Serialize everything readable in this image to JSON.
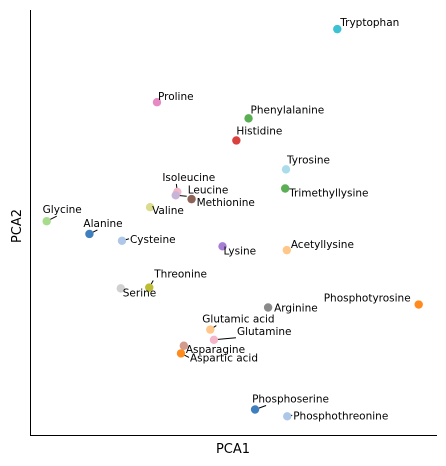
{
  "chart_data": {
    "type": "scatter",
    "title": "",
    "xlabel": "PCA1",
    "ylabel": "PCA2",
    "xlim": [
      0,
      100
    ],
    "ylim": [
      0,
      100
    ],
    "grid": false,
    "show_ticks": false,
    "points": [
      {
        "label": "Tryptophan",
        "x": 75.5,
        "y": 95.5,
        "color": "#3cc2d2"
      },
      {
        "label": "Proline",
        "x": 31.2,
        "y": 78.3,
        "color": "#e78ac3"
      },
      {
        "label": "Phenylalanine",
        "x": 53.7,
        "y": 74.5,
        "color": "#5aae53"
      },
      {
        "label": "Histidine",
        "x": 50.7,
        "y": 69.3,
        "color": "#d9413e"
      },
      {
        "label": "Tyrosine",
        "x": 62.9,
        "y": 62.5,
        "color": "#aadcec"
      },
      {
        "label": "Trimethyllysine",
        "x": 62.7,
        "y": 58.0,
        "color": "#5aae53"
      },
      {
        "label": "Isoleucine",
        "x": 36.2,
        "y": 57.2,
        "color": "#f4b6c8"
      },
      {
        "label": "Leucine",
        "x": 35.8,
        "y": 56.4,
        "color": "#c8b4d9"
      },
      {
        "label": "Methionine",
        "x": 39.7,
        "y": 55.5,
        "color": "#8c6356"
      },
      {
        "label": "Valine",
        "x": 29.5,
        "y": 53.6,
        "color": "#dbdc8d"
      },
      {
        "label": "Glycine",
        "x": 4.1,
        "y": 50.3,
        "color": "#a7dc8d"
      },
      {
        "label": "Alanine",
        "x": 14.6,
        "y": 47.3,
        "color": "#3f7fbe"
      },
      {
        "label": "Cysteine",
        "x": 22.6,
        "y": 45.7,
        "color": "#aec7e8"
      },
      {
        "label": "Lysine",
        "x": 47.3,
        "y": 44.4,
        "color": "#a67ed3"
      },
      {
        "label": "Acetyllysine",
        "x": 63.1,
        "y": 43.5,
        "color": "#ffc78a"
      },
      {
        "label": "Threonine",
        "x": 29.3,
        "y": 34.7,
        "color": "#bcbc35"
      },
      {
        "label": "Serine",
        "x": 22.3,
        "y": 34.5,
        "color": "#d0d0d0"
      },
      {
        "label": "Phosphotyrosine",
        "x": 95.5,
        "y": 30.7,
        "color": "#ff8a1e"
      },
      {
        "label": "Arginine",
        "x": 58.5,
        "y": 30.0,
        "color": "#8a8a8a"
      },
      {
        "label": "Glutamic acid",
        "x": 44.3,
        "y": 24.8,
        "color": "#ffc78a"
      },
      {
        "label": "Glutamine",
        "x": 45.2,
        "y": 22.4,
        "color": "#f4b6c8"
      },
      {
        "label": "Asparagine",
        "x": 37.8,
        "y": 21.0,
        "color": "#d39a8e"
      },
      {
        "label": "Aspartic acid",
        "x": 37.1,
        "y": 19.2,
        "color": "#ff8a1e"
      },
      {
        "label": "Phosphoserine",
        "x": 55.3,
        "y": 6.0,
        "color": "#3f7fbe"
      },
      {
        "label": "Phosphothreonine",
        "x": 63.2,
        "y": 4.4,
        "color": "#aec7e8"
      }
    ]
  }
}
